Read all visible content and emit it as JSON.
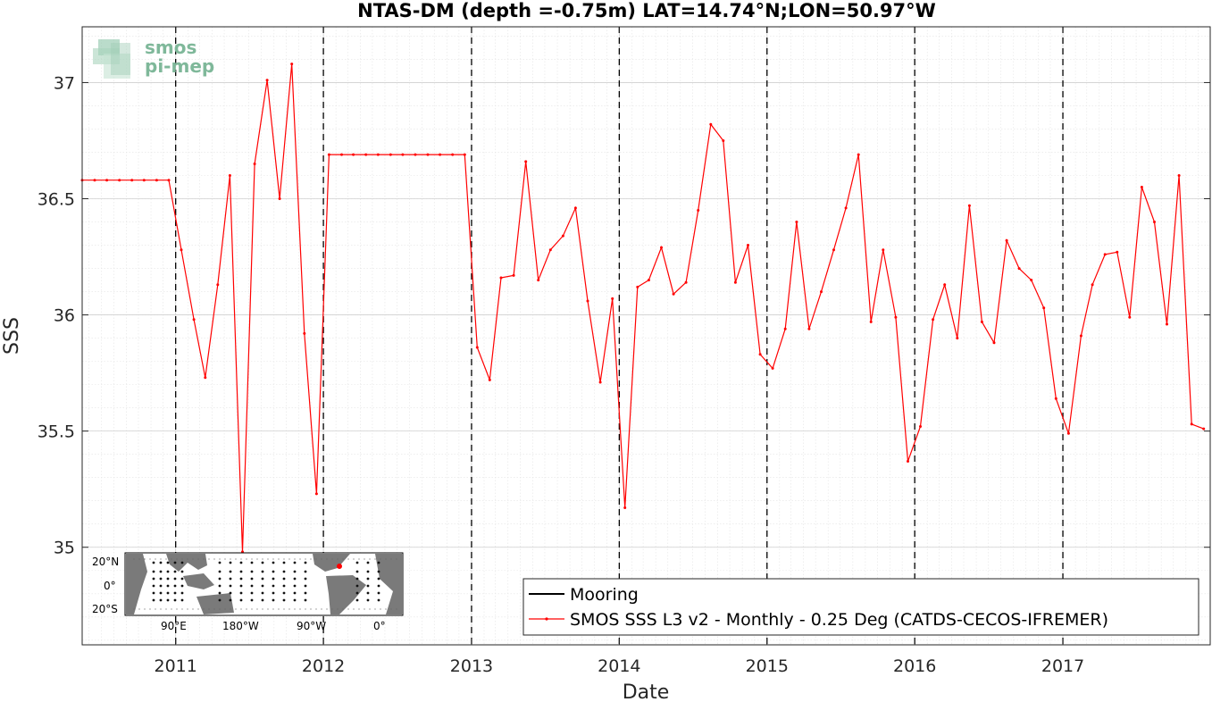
{
  "chart_data": {
    "type": "line",
    "title": "NTAS-DM (depth =-0.75m) LAT=14.74°N;LON=50.97°W",
    "xlabel": "Date",
    "ylabel": "SSS",
    "x_range": [
      "2010-05-15",
      "2017-12-31"
    ],
    "ylim": [
      34.58,
      37.24
    ],
    "x_ticks": [
      "2011",
      "2012",
      "2013",
      "2014",
      "2015",
      "2016",
      "2017"
    ],
    "y_ticks": [
      35,
      35.5,
      36,
      36.5,
      37
    ],
    "y_tick_labels": [
      "35",
      "35.5",
      "36",
      "36.5",
      "37"
    ],
    "year_lines": [
      "2011-01-01",
      "2012-01-01",
      "2013-01-01",
      "2014-01-01",
      "2015-01-01",
      "2016-01-01",
      "2017-01-01"
    ],
    "grid": true,
    "legend_position": "bottom-right",
    "legend": [
      {
        "label": "Mooring",
        "color": "#000000"
      },
      {
        "label": "SMOS SSS L3 v2 - Monthly - 0.25 Deg (CATDS-CECOS-IFREMER)",
        "color": "#ff0000"
      }
    ],
    "series": [
      {
        "name": "SMOS SSS L3 v2 - Monthly - 0.25 Deg (CATDS-CECOS-IFREMER)",
        "color": "#ff0000",
        "x": [
          "2010-05-15",
          "2010-06-15",
          "2010-07-15",
          "2010-08-15",
          "2010-09-15",
          "2010-10-15",
          "2010-11-15",
          "2010-12-15",
          "2011-01-15",
          "2011-02-15",
          "2011-03-15",
          "2011-04-15",
          "2011-05-15",
          "2011-06-15",
          "2011-07-15",
          "2011-08-15",
          "2011-09-15",
          "2011-10-15",
          "2011-11-15",
          "2011-12-15",
          "2012-01-15",
          "2012-02-15",
          "2012-03-15",
          "2012-04-15",
          "2012-05-15",
          "2012-06-15",
          "2012-07-15",
          "2012-08-15",
          "2012-09-15",
          "2012-10-15",
          "2012-11-15",
          "2012-12-15",
          "2013-01-15",
          "2013-02-15",
          "2013-03-15",
          "2013-04-15",
          "2013-05-15",
          "2013-06-15",
          "2013-07-15",
          "2013-08-15",
          "2013-09-15",
          "2013-10-15",
          "2013-11-15",
          "2013-12-15",
          "2014-01-15",
          "2014-02-15",
          "2014-03-15",
          "2014-04-15",
          "2014-05-15",
          "2014-06-15",
          "2014-07-15",
          "2014-08-15",
          "2014-09-15",
          "2014-10-15",
          "2014-11-15",
          "2014-12-15",
          "2015-01-15",
          "2015-02-15",
          "2015-03-15",
          "2015-04-15",
          "2015-05-15",
          "2015-06-15",
          "2015-07-15",
          "2015-08-15",
          "2015-09-15",
          "2015-10-15",
          "2015-11-15",
          "2015-12-15",
          "2016-01-15",
          "2016-02-15",
          "2016-03-15",
          "2016-04-15",
          "2016-05-15",
          "2016-06-15",
          "2016-07-15",
          "2016-08-15",
          "2016-09-15",
          "2016-10-15",
          "2016-11-15",
          "2016-12-15",
          "2017-01-15",
          "2017-02-15",
          "2017-03-15",
          "2017-04-15",
          "2017-05-15",
          "2017-06-15",
          "2017-07-15",
          "2017-08-15",
          "2017-09-15",
          "2017-10-15",
          "2017-11-15",
          "2017-12-15"
        ],
        "y": [
          36.58,
          36.58,
          36.58,
          36.58,
          36.58,
          36.58,
          36.58,
          36.58,
          36.28,
          35.98,
          35.73,
          36.13,
          36.6,
          34.98,
          36.65,
          37.01,
          36.5,
          37.08,
          35.92,
          35.23,
          36.69,
          36.69,
          36.69,
          36.69,
          36.69,
          36.69,
          36.69,
          36.69,
          36.69,
          36.69,
          36.69,
          36.69,
          35.86,
          35.72,
          36.16,
          36.17,
          36.66,
          36.15,
          36.28,
          36.34,
          36.46,
          36.06,
          35.71,
          36.07,
          35.17,
          36.12,
          36.15,
          36.29,
          36.09,
          36.14,
          36.45,
          36.82,
          36.75,
          36.14,
          36.3,
          35.83,
          35.77,
          35.94,
          36.4,
          35.94,
          36.1,
          36.28,
          36.46,
          36.69,
          35.97,
          36.28,
          35.99,
          35.37,
          35.52,
          35.98,
          36.13,
          35.9,
          36.47,
          35.97,
          35.88,
          36.32,
          36.2,
          36.15,
          36.03,
          35.64,
          35.49,
          35.91,
          36.13,
          36.26,
          36.27,
          35.99,
          36.55,
          36.4,
          35.96,
          36.6,
          35.53,
          35.51
        ]
      }
    ]
  },
  "logo": {
    "line1": "smos",
    "line2": "pi-mep"
  },
  "inset_map": {
    "lat_labels": [
      "20°N",
      "0°",
      "20°S"
    ],
    "lon_labels": [
      "90°E",
      "180°W",
      "90°W",
      "0°"
    ],
    "marker_color": "#ff0000"
  }
}
